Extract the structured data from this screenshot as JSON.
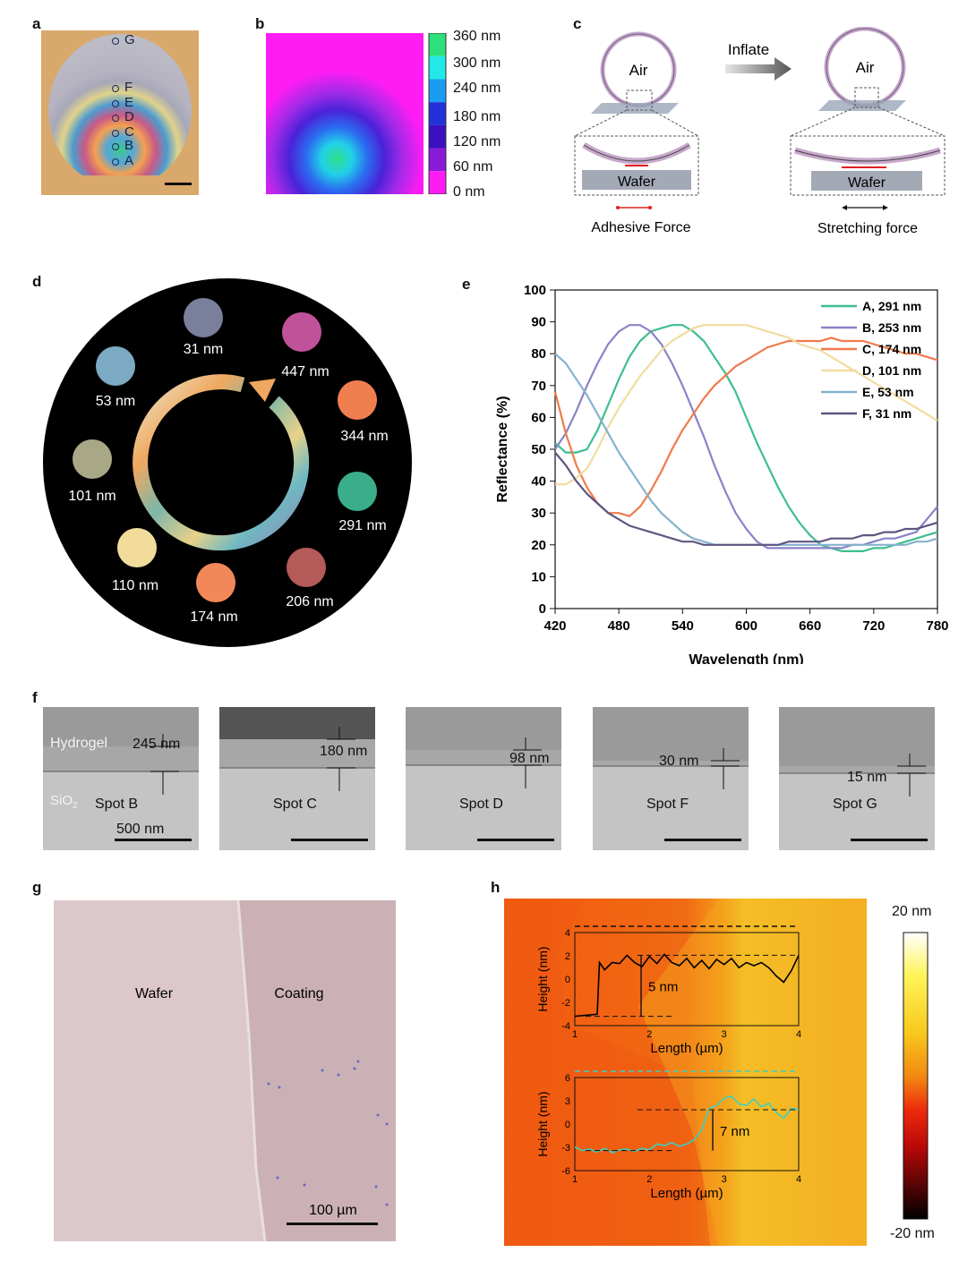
{
  "panels": {
    "a": "a",
    "b": "b",
    "c": "c",
    "d": "d",
    "e": "e",
    "f": "f",
    "g": "g",
    "h": "h"
  },
  "panel_a": {
    "spots": [
      "G",
      "F",
      "E",
      "D",
      "C",
      "B",
      "A"
    ]
  },
  "panel_b": {
    "colorbar_labels": [
      "360 nm",
      "300 nm",
      "240 nm",
      "180 nm",
      "120 nm",
      "60 nm",
      "0 nm"
    ],
    "colorbar_colors": [
      "#2ee07a",
      "#22e8e8",
      "#1a9cf0",
      "#2232d8",
      "#3a10c0",
      "#8a1ad8",
      "#ff1cf4"
    ]
  },
  "panel_c": {
    "air_left": "Air",
    "air_right": "Air",
    "inflate": "Inflate",
    "wafer_left": "Wafer",
    "wafer_right": "Wafer",
    "adhesive": "Adhesive Force",
    "stretching": "Stretching force"
  },
  "panel_d": {
    "swatches": [
      {
        "label": "31 nm",
        "color": "#7a7f9c"
      },
      {
        "label": "447 nm",
        "color": "#c0529a"
      },
      {
        "label": "344 nm",
        "color": "#f07f50"
      },
      {
        "label": "291 nm",
        "color": "#3aae8a"
      },
      {
        "label": "206 nm",
        "color": "#b45a58"
      },
      {
        "label": "174 nm",
        "color": "#f2885a"
      },
      {
        "label": "110 nm",
        "color": "#f1dc9c"
      },
      {
        "label": "101 nm",
        "color": "#a8a786"
      },
      {
        "label": "53 nm",
        "color": "#7caac2"
      }
    ]
  },
  "chart_data": {
    "type": "line",
    "xlabel": "Wavelength (nm)",
    "ylabel": "Reflectance (%)",
    "xlim": [
      420,
      780
    ],
    "ylim": [
      0,
      100
    ],
    "x_ticks": [
      420,
      480,
      540,
      600,
      660,
      720,
      780
    ],
    "y_ticks": [
      0,
      10,
      20,
      30,
      40,
      50,
      60,
      70,
      80,
      90,
      100
    ],
    "legend_position": "top-right",
    "series": [
      {
        "name": "A, 291 nm",
        "color": "#3dbf8e",
        "x": [
          420,
          430,
          440,
          450,
          460,
          470,
          480,
          490,
          500,
          510,
          520,
          530,
          540,
          550,
          560,
          570,
          580,
          590,
          600,
          610,
          620,
          630,
          640,
          650,
          660,
          670,
          680,
          690,
          700,
          710,
          720,
          730,
          740,
          750,
          760,
          770,
          780
        ],
        "y": [
          52,
          49,
          49,
          50,
          56,
          64,
          72,
          79,
          84,
          87,
          88,
          89,
          89,
          87,
          84,
          79,
          74,
          68,
          60,
          52,
          45,
          38,
          32,
          27,
          23,
          20,
          19,
          18,
          18,
          18,
          19,
          19,
          20,
          21,
          22,
          23,
          24
        ]
      },
      {
        "name": "B, 253 nm",
        "color": "#8a82c8",
        "x": [
          420,
          430,
          440,
          450,
          460,
          470,
          480,
          490,
          500,
          510,
          520,
          530,
          540,
          550,
          560,
          570,
          580,
          590,
          600,
          610,
          620,
          630,
          640,
          650,
          660,
          670,
          680,
          690,
          700,
          710,
          720,
          730,
          740,
          750,
          760,
          770,
          780
        ],
        "y": [
          50,
          55,
          62,
          70,
          77,
          83,
          87,
          89,
          89,
          87,
          83,
          77,
          70,
          62,
          54,
          45,
          37,
          30,
          25,
          21,
          19,
          19,
          19,
          19,
          19,
          19,
          19,
          19,
          20,
          20,
          21,
          22,
          22,
          23,
          24,
          28,
          32
        ]
      },
      {
        "name": "C, 174 nm",
        "color": "#f07a4c",
        "x": [
          420,
          430,
          440,
          450,
          460,
          470,
          480,
          490,
          500,
          510,
          520,
          530,
          540,
          550,
          560,
          570,
          580,
          590,
          600,
          610,
          620,
          630,
          640,
          650,
          660,
          670,
          680,
          690,
          700,
          710,
          720,
          730,
          740,
          750,
          760,
          770,
          780
        ],
        "y": [
          68,
          55,
          45,
          38,
          33,
          30,
          30,
          29,
          32,
          37,
          43,
          50,
          56,
          61,
          66,
          70,
          73,
          76,
          78,
          80,
          82,
          83,
          84,
          84,
          84,
          84,
          85,
          84,
          84,
          84,
          83,
          82,
          81,
          80,
          80,
          79,
          78
        ]
      },
      {
        "name": "D, 101 nm",
        "color": "#f0dca0",
        "x": [
          420,
          430,
          440,
          450,
          460,
          470,
          480,
          490,
          500,
          510,
          520,
          530,
          540,
          550,
          560,
          570,
          580,
          590,
          600,
          610,
          620,
          630,
          640,
          650,
          660,
          670,
          680,
          690,
          700,
          710,
          720,
          730,
          740,
          750,
          760,
          770,
          780
        ],
        "y": [
          39,
          39,
          41,
          44,
          50,
          57,
          63,
          68,
          73,
          77,
          81,
          84,
          86,
          88,
          89,
          89,
          89,
          89,
          89,
          88,
          87,
          86,
          85,
          83,
          82,
          81,
          79,
          77,
          75,
          73,
          71,
          69,
          67,
          65,
          63,
          61,
          59
        ]
      },
      {
        "name": "E, 53 nm",
        "color": "#86b2cc",
        "x": [
          420,
          430,
          440,
          450,
          460,
          470,
          480,
          490,
          500,
          510,
          520,
          530,
          540,
          550,
          560,
          570,
          580,
          590,
          600,
          610,
          620,
          630,
          640,
          650,
          660,
          670,
          680,
          690,
          700,
          710,
          720,
          730,
          740,
          750,
          760,
          770,
          780
        ],
        "y": [
          80,
          77,
          72,
          67,
          61,
          55,
          49,
          44,
          39,
          34,
          30,
          27,
          24,
          22,
          21,
          20,
          20,
          20,
          20,
          20,
          20,
          20,
          20,
          20,
          20,
          20,
          20,
          20,
          20,
          20,
          20,
          20,
          20,
          20,
          21,
          21,
          22
        ]
      },
      {
        "name": "F, 31 nm",
        "color": "#5e5680",
        "x": [
          420,
          430,
          440,
          450,
          460,
          470,
          480,
          490,
          500,
          510,
          520,
          530,
          540,
          550,
          560,
          570,
          580,
          590,
          600,
          610,
          620,
          630,
          640,
          650,
          660,
          670,
          680,
          690,
          700,
          710,
          720,
          730,
          740,
          750,
          760,
          770,
          780
        ],
        "y": [
          49,
          45,
          40,
          36,
          33,
          30,
          28,
          26,
          25,
          24,
          23,
          22,
          21,
          21,
          20,
          20,
          20,
          20,
          20,
          20,
          20,
          20,
          21,
          21,
          21,
          21,
          22,
          22,
          22,
          23,
          23,
          24,
          24,
          25,
          25,
          26,
          27
        ]
      }
    ]
  },
  "panel_f": {
    "images": [
      {
        "spot": "Spot B",
        "thickness": "245 nm",
        "scale": "500 nm",
        "hydrogel": "Hydrogel",
        "sio2": "SiO",
        "sio2_sub": "2"
      },
      {
        "spot": "Spot C",
        "thickness": "180 nm"
      },
      {
        "spot": "Spot D",
        "thickness": "98 nm"
      },
      {
        "spot": "Spot F",
        "thickness": "30 nm"
      },
      {
        "spot": "Spot G",
        "thickness": "15 nm"
      }
    ]
  },
  "panel_g": {
    "wafer": "Wafer",
    "coating": "Coating",
    "scale": "100 µm"
  },
  "panel_h": {
    "colorbar_top": "20 nm",
    "colorbar_bottom": "-20 nm",
    "inset1": {
      "ylabel": "Height (nm)",
      "xlabel": "Length (µm)",
      "step": "5 nm",
      "y_ticks": [
        "4",
        "2",
        "0",
        "-2",
        "-4"
      ],
      "x_ticks": [
        "1",
        "2",
        "3",
        "4"
      ],
      "x": [
        1.0,
        1.15,
        1.3,
        1.33,
        1.4,
        1.5,
        1.6,
        1.7,
        1.8,
        1.9,
        2.0,
        2.1,
        2.2,
        2.3,
        2.4,
        2.5,
        2.6,
        2.7,
        2.8,
        2.9,
        3.0,
        3.1,
        3.2,
        3.3,
        3.4,
        3.5,
        3.6,
        3.7,
        3.8,
        3.9,
        4.0
      ],
      "y": [
        -3.6,
        -3.5,
        -3.4,
        1.6,
        0.9,
        1.6,
        1.5,
        2.3,
        1.6,
        1.2,
        2.2,
        1.5,
        2.4,
        1.6,
        1.3,
        2.0,
        1.1,
        1.8,
        1.0,
        1.9,
        1.4,
        2.0,
        1.1,
        1.6,
        1.3,
        1.6,
        1.1,
        0.3,
        -0.3,
        0.8,
        2.3
      ],
      "color": "#000000"
    },
    "inset2": {
      "ylabel": "Height (nm)",
      "xlabel": "Length (µm)",
      "step": "7 nm",
      "y_ticks": [
        "6",
        "3",
        "0",
        "-3",
        "-6"
      ],
      "x_ticks": [
        "1",
        "2",
        "3",
        "4"
      ],
      "x": [
        1.0,
        1.1,
        1.2,
        1.3,
        1.4,
        1.5,
        1.6,
        1.7,
        1.8,
        1.9,
        2.0,
        2.1,
        2.2,
        2.3,
        2.4,
        2.5,
        2.6,
        2.7,
        2.8,
        2.9,
        3.0,
        3.1,
        3.2,
        3.3,
        3.4,
        3.5,
        3.6,
        3.7,
        3.8,
        3.9,
        4.0
      ],
      "y": [
        -3.2,
        -3.7,
        -3.5,
        -3.9,
        -3.4,
        -4.0,
        -3.6,
        -3.5,
        -3.8,
        -3.4,
        -3.6,
        -2.8,
        -3.0,
        -2.6,
        -3.1,
        -2.8,
        -2.2,
        -0.8,
        2.2,
        2.6,
        3.6,
        3.9,
        2.8,
        2.6,
        3.5,
        2.4,
        2.9,
        1.6,
        0.8,
        2.2,
        2.0
      ],
      "color": "#3ccfc0"
    }
  }
}
